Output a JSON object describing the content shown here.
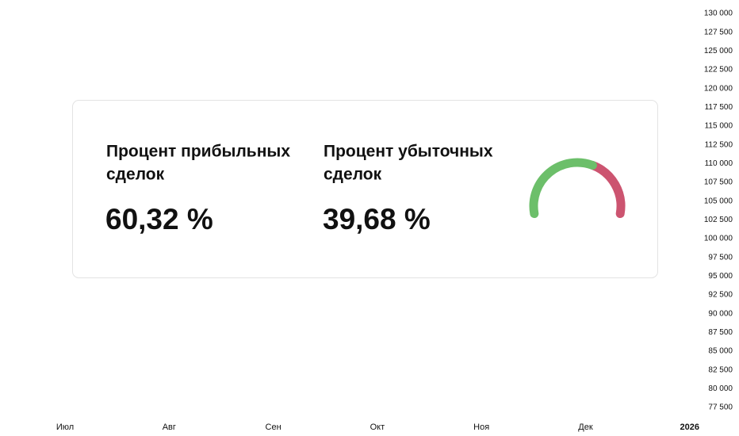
{
  "y_axis": {
    "labels": [
      "130 000",
      "127 500",
      "125 000",
      "122 500",
      "120 000",
      "117 500",
      "115 000",
      "112 500",
      "110 000",
      "107 500",
      "105 000",
      "102 500",
      "100 000",
      "97 500",
      "95 000",
      "92 500",
      "90 000",
      "87 500",
      "85 000",
      "82 500",
      "80 000",
      "77 500"
    ]
  },
  "x_axis": {
    "labels": [
      "Июл",
      "Авг",
      "Сен",
      "Окт",
      "Ноя",
      "Дек",
      "2026"
    ]
  },
  "card": {
    "win": {
      "title_line1": "Процент прибыльных",
      "title_line2": "сделок",
      "value": 60.32,
      "label": "60,32 %",
      "color": "#6cbf6a"
    },
    "loss": {
      "title_line1": "Процент убыточных",
      "title_line2": "сделок",
      "value": 39.68,
      "label": "39,68 %",
      "color": "#cc5470"
    }
  }
}
